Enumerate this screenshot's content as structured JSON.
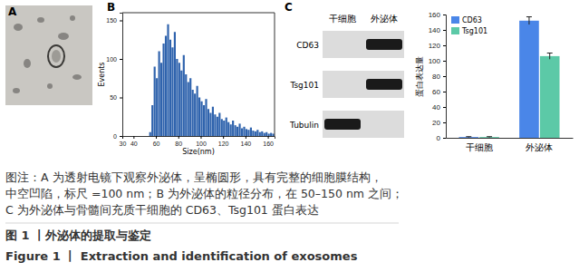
{
  "chart_data": [
    {
      "type": "histogram",
      "xlabel": "Size(nm)",
      "ylabel": "Events",
      "color": "#2f63ad",
      "bins": [
        30,
        32,
        34,
        36,
        38,
        40,
        42,
        44,
        46,
        48,
        50,
        52,
        54,
        56,
        58,
        60,
        62,
        64,
        66,
        68,
        70,
        72,
        74,
        76,
        78,
        80,
        82,
        84,
        86,
        88,
        90,
        92,
        94,
        96,
        98,
        100,
        102,
        104,
        106,
        108,
        110,
        112,
        114,
        116,
        118,
        120,
        122,
        124,
        126,
        128,
        130,
        132,
        134,
        136,
        138,
        140,
        142,
        144,
        146,
        148,
        150,
        152,
        154,
        156,
        158,
        160,
        162,
        164,
        166
      ],
      "counts": [
        0,
        0,
        0,
        0,
        0,
        0,
        0,
        0,
        0,
        0,
        0,
        0,
        5,
        40,
        90,
        75,
        110,
        95,
        120,
        130,
        145,
        125,
        115,
        135,
        100,
        95,
        85,
        105,
        80,
        70,
        75,
        60,
        55,
        65,
        50,
        45,
        40,
        48,
        35,
        30,
        38,
        28,
        25,
        30,
        22,
        20,
        24,
        18,
        15,
        20,
        14,
        12,
        16,
        10,
        12,
        9,
        8,
        11,
        7,
        6,
        8,
        5,
        6,
        4,
        5,
        3,
        4,
        3
      ],
      "xlim": [
        30,
        166
      ],
      "xticks": [
        30,
        40,
        60,
        80,
        100,
        120,
        140,
        160
      ],
      "ylim": [
        0,
        160
      ],
      "yticks": [
        0,
        50,
        100,
        150
      ]
    },
    {
      "type": "bar",
      "ylabel": "蛋白表达量",
      "categories": [
        "干细胞",
        "外泌体"
      ],
      "series": [
        {
          "name": "CD63",
          "color": "#4a86e8",
          "values": [
            1,
            152
          ],
          "errors": [
            0.5,
            5
          ]
        },
        {
          "name": "Tsg101",
          "color": "#5cc9a7",
          "values": [
            1,
            106
          ],
          "errors": [
            0.5,
            4
          ]
        }
      ],
      "ylim": [
        0,
        160
      ],
      "yticks": [
        0,
        20,
        40,
        60,
        80,
        100,
        120,
        140,
        160
      ],
      "legend": "upper left"
    }
  ],
  "figure": {
    "panels": [
      "A",
      "B",
      "C"
    ],
    "blot": {
      "columns": [
        "干细胞",
        "外泌体"
      ],
      "rows": [
        {
          "label": "CD63",
          "bands": [
            false,
            true
          ]
        },
        {
          "label": "Tsg101",
          "bands": [
            false,
            true
          ]
        },
        {
          "label": "Tubulin",
          "bands": [
            true,
            false
          ]
        }
      ]
    },
    "caption_lines": [
      "图注：A 为透射电镜下观察外泌体，呈椭圆形，具有完整的细胞膜结构，",
      "中空凹陷，标尺 =100 nm；B 为外泌体的粒径分布，在 50–150 nm 之间；",
      "C 为外泌体与骨髓间充质干细胞的 CD63、Tsg101 蛋白表达"
    ],
    "title_cn": "图 1 丨外泌体的提取与鉴定",
    "title_en": "Figure 1 丨 Extraction and identification of exosomes"
  }
}
